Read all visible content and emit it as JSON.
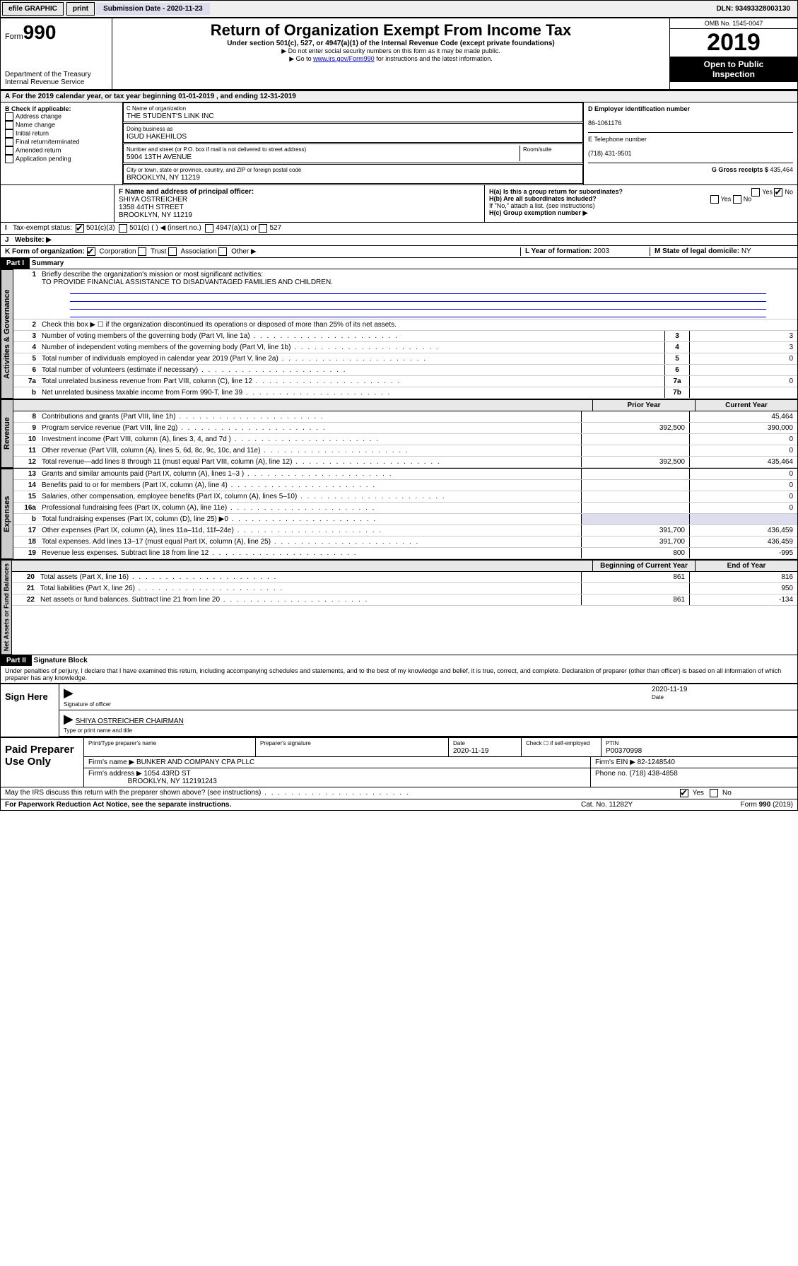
{
  "topbar": {
    "efile": "efile GRAPHIC",
    "print": "print",
    "sub_lbl": "Submission Date - ",
    "sub_date": "2020-11-23",
    "dln_lbl": "DLN: ",
    "dln": "93493328003130"
  },
  "hdr": {
    "form_word": "Form",
    "form_num": "990",
    "title": "Return of Organization Exempt From Income Tax",
    "sub1": "Under section 501(c), 527, or 4947(a)(1) of the Internal Revenue Code (except private foundations)",
    "sub2": "▶ Do not enter social security numbers on this form as it may be made public.",
    "sub3_pre": "▶ Go to ",
    "sub3_link": "www.irs.gov/Form990",
    "sub3_post": " for instructions and the latest information.",
    "dept1": "Department of the Treasury",
    "dept2": "Internal Revenue Service",
    "omb": "OMB No. 1545-0047",
    "year": "2019",
    "otp1": "Open to Public",
    "otp2": "Inspection"
  },
  "A": {
    "text": "For the 2019 calendar year, or tax year beginning 01-01-2019    , and ending 12-31-2019"
  },
  "B": {
    "hdr": "B Check if applicable:",
    "items": [
      "Address change",
      "Name change",
      "Initial return",
      "Final return/terminated",
      "Amended return",
      "Application pending"
    ]
  },
  "C": {
    "name_lbl": "C Name of organization",
    "name": "THE STUDENT'S LINK INC",
    "dba_lbl": "Doing business as",
    "dba": "IGUD HAKEHILOS",
    "addr_lbl": "Number and street (or P.O. box if mail is not delivered to street address)",
    "room_lbl": "Room/suite",
    "addr": "5904 13TH AVENUE",
    "city_lbl": "City or town, state or province, country, and ZIP or foreign postal code",
    "city": "BROOKLYN, NY  11219"
  },
  "D": {
    "lbl": "D Employer identification number",
    "val": "86-1061176"
  },
  "E": {
    "lbl": "E Telephone number",
    "val": "(718) 431-9501"
  },
  "G": {
    "lbl": "G Gross receipts $",
    "val": "435,464"
  },
  "F": {
    "lbl": "F  Name and address of principal officer:",
    "l1": "SHIYA OSTREICHER",
    "l2": "1358 44TH STREET",
    "l3": "BROOKLYN, NY 11219"
  },
  "H": {
    "a": "H(a)  Is this a group return for subordinates?",
    "b": "H(b)  Are all subordinates included?",
    "note": "If \"No,\" attach a list. (see instructions)",
    "c": "H(c)  Group exemption number ▶",
    "yes": "Yes",
    "no": "No"
  },
  "I": {
    "lbl": "Tax-exempt status:",
    "a": "501(c)(3)",
    "b": "501(c) (  ) ◀ (insert no.)",
    "c": "4947(a)(1) or",
    "d": "527"
  },
  "J": {
    "lbl": "Website: ▶"
  },
  "K": {
    "lbl": "K Form of organization:",
    "opts": [
      "Corporation",
      "Trust",
      "Association",
      "Other ▶"
    ]
  },
  "L": {
    "lbl": "L Year of formation:",
    "val": "2003"
  },
  "M": {
    "lbl": "M State of legal domicile:",
    "val": "NY"
  },
  "P1": {
    "title": "Part I",
    "name": "Summary",
    "q1": {
      "n": "1",
      "t": "Briefly describe the organization's mission or most significant activities:",
      "v": "TO PROVIDE FINANCIAL ASSISTANCE TO DISADVANTAGED FAMILIES AND CHILDREN."
    },
    "q2": {
      "n": "2",
      "t": "Check this box ▶ ☐  if the organization discontinued its operations or disposed of more than 25% of its net assets."
    },
    "rows": [
      {
        "n": "3",
        "t": "Number of voting members of the governing body (Part VI, line 1a)",
        "b": "3",
        "v": "3"
      },
      {
        "n": "4",
        "t": "Number of independent voting members of the governing body (Part VI, line 1b)",
        "b": "4",
        "v": "3"
      },
      {
        "n": "5",
        "t": "Total number of individuals employed in calendar year 2019 (Part V, line 2a)",
        "b": "5",
        "v": "0"
      },
      {
        "n": "6",
        "t": "Total number of volunteers (estimate if necessary)",
        "b": "6",
        "v": ""
      },
      {
        "n": "7a",
        "t": "Total unrelated business revenue from Part VIII, column (C), line 12",
        "b": "7a",
        "v": "0"
      },
      {
        "n": "b",
        "t": "Net unrelated business taxable income from Form 990-T, line 39",
        "b": "7b",
        "v": ""
      }
    ],
    "col1": "Prior Year",
    "col2": "Current Year",
    "rev": [
      {
        "n": "8",
        "t": "Contributions and grants (Part VIII, line 1h)",
        "p": "",
        "c": "45,464"
      },
      {
        "n": "9",
        "t": "Program service revenue (Part VIII, line 2g)",
        "p": "392,500",
        "c": "390,000"
      },
      {
        "n": "10",
        "t": "Investment income (Part VIII, column (A), lines 3, 4, and 7d )",
        "p": "",
        "c": "0"
      },
      {
        "n": "11",
        "t": "Other revenue (Part VIII, column (A), lines 5, 6d, 8c, 9c, 10c, and 11e)",
        "p": "",
        "c": "0"
      },
      {
        "n": "12",
        "t": "Total revenue—add lines 8 through 11 (must equal Part VIII, column (A), line 12)",
        "p": "392,500",
        "c": "435,464"
      }
    ],
    "exp": [
      {
        "n": "13",
        "t": "Grants and similar amounts paid (Part IX, column (A), lines 1–3 )",
        "p": "",
        "c": "0"
      },
      {
        "n": "14",
        "t": "Benefits paid to or for members (Part IX, column (A), line 4)",
        "p": "",
        "c": "0"
      },
      {
        "n": "15",
        "t": "Salaries, other compensation, employee benefits (Part IX, column (A), lines 5–10)",
        "p": "",
        "c": "0"
      },
      {
        "n": "16a",
        "t": "Professional fundraising fees (Part IX, column (A), line 11e)",
        "p": "",
        "c": "0"
      },
      {
        "n": "b",
        "t": "Total fundraising expenses (Part IX, column (D), line 25) ▶0",
        "p": "",
        "c": "",
        "nb": true
      },
      {
        "n": "17",
        "t": "Other expenses (Part IX, column (A), lines 11a–11d, 11f–24e)",
        "p": "391,700",
        "c": "436,459"
      },
      {
        "n": "18",
        "t": "Total expenses. Add lines 13–17 (must equal Part IX, column (A), line 25)",
        "p": "391,700",
        "c": "436,459"
      },
      {
        "n": "19",
        "t": "Revenue less expenses. Subtract line 18 from line 12",
        "p": "800",
        "c": "-995"
      }
    ],
    "col3": "Beginning of Current Year",
    "col4": "End of Year",
    "net": [
      {
        "n": "20",
        "t": "Total assets (Part X, line 16)",
        "p": "861",
        "c": "816"
      },
      {
        "n": "21",
        "t": "Total liabilities (Part X, line 26)",
        "p": "",
        "c": "950"
      },
      {
        "n": "22",
        "t": "Net assets or fund balances. Subtract line 21 from line 20",
        "p": "861",
        "c": "-134"
      }
    ]
  },
  "P2": {
    "title": "Part II",
    "name": "Signature Block",
    "decl": "Under penalties of perjury, I declare that I have examined this return, including accompanying schedules and statements, and to the best of my knowledge and belief, it is true, correct, and complete. Declaration of preparer (other than officer) is based on all information of which preparer has any knowledge."
  },
  "sign": {
    "here": "Sign Here",
    "sig_lbl": "Signature of officer",
    "date_lbl": "Date",
    "date": "2020-11-19",
    "name": "SHIYA OSTREICHER  CHAIRMAN",
    "name_lbl": "Type or print name and title"
  },
  "prep": {
    "title": "Paid Preparer Use Only",
    "h1": "Print/Type preparer's name",
    "h2": "Preparer's signature",
    "h3": "Date",
    "h3v": "2020-11-19",
    "h4": "Check ☐ if self-employed",
    "h5": "PTIN",
    "h5v": "P00370998",
    "firm_lbl": "Firm's name   ▶",
    "firm": "BUNKER AND COMPANY CPA PLLC",
    "ein_lbl": "Firm's EIN ▶",
    "ein": "82-1248540",
    "addr_lbl": "Firm's address ▶",
    "addr1": "1054 43RD ST",
    "addr2": "BROOKLYN, NY  112191243",
    "ph_lbl": "Phone no.",
    "ph": "(718) 438-4858"
  },
  "irs_q": "May the IRS discuss this return with the preparer shown above? (see instructions)",
  "foot": {
    "l": "For Paperwork Reduction Act Notice, see the separate instructions.",
    "c": "Cat. No. 11282Y",
    "r": "Form 990 (2019)"
  },
  "vtabs": {
    "ag": "Activities & Governance",
    "rev": "Revenue",
    "exp": "Expenses",
    "net": "Net Assets or Fund Balances"
  }
}
